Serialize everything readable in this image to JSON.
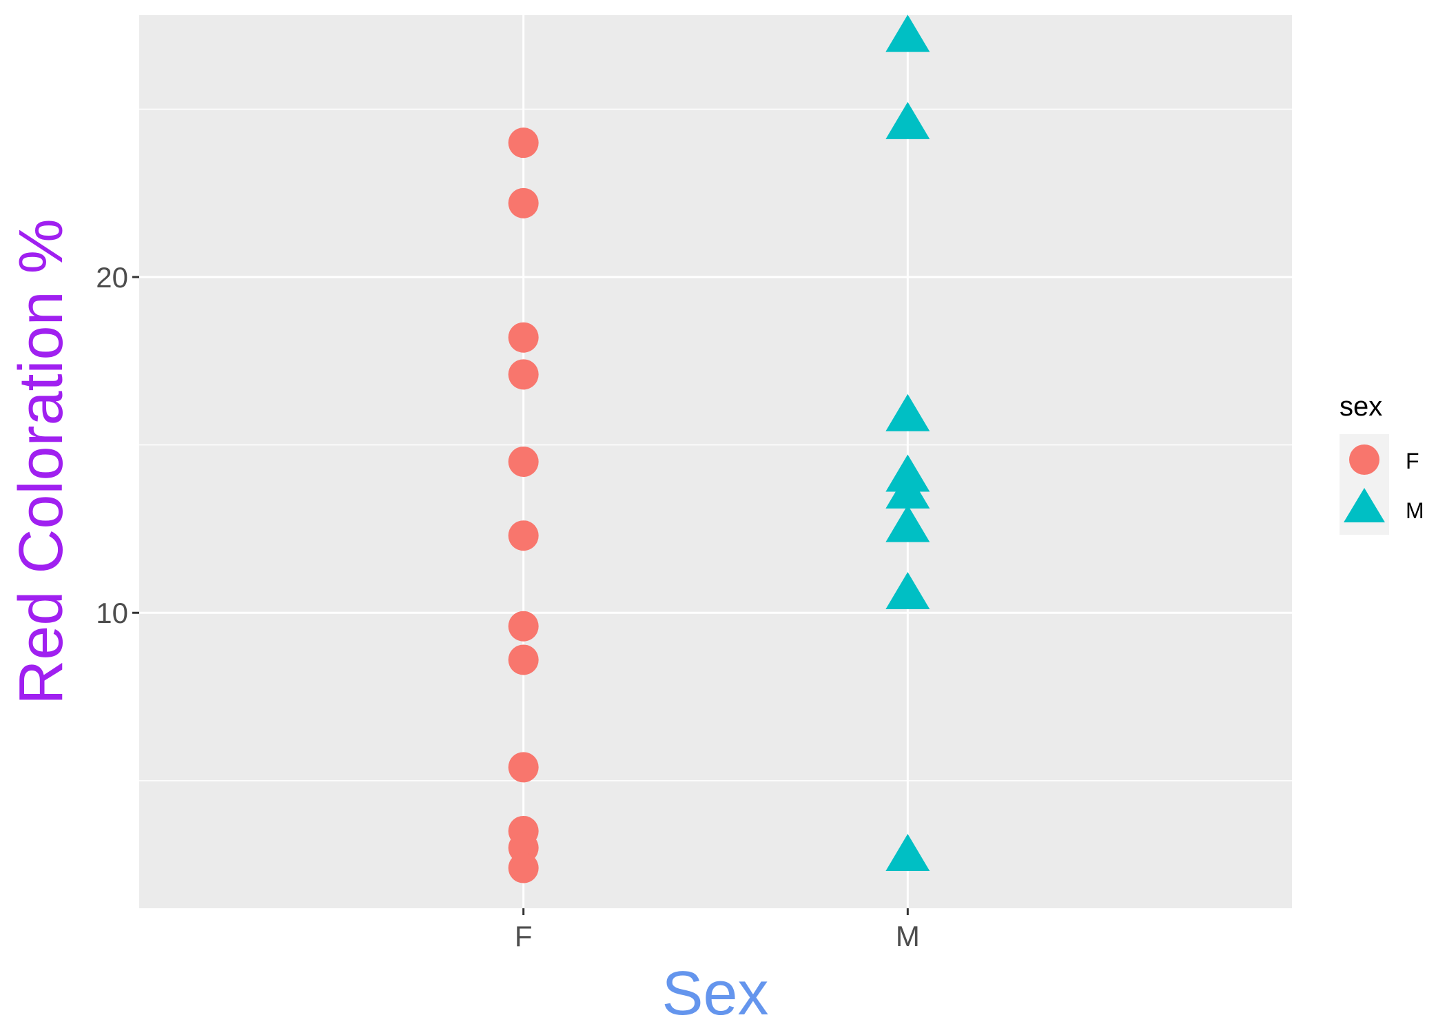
{
  "chart_data": {
    "type": "scatter",
    "xlabel": "Sex",
    "ylabel": "Red Coloration %",
    "categories": [
      "F",
      "M"
    ],
    "ylim": [
      1.2,
      27.8
    ],
    "yticks": [
      10,
      20
    ],
    "grid": true,
    "legend": {
      "title": "sex",
      "placement": "right"
    },
    "series": [
      {
        "name": "F",
        "marker": "circle",
        "color": "#F8766D",
        "points": [
          {
            "x": "F",
            "y": 24.0
          },
          {
            "x": "F",
            "y": 22.2
          },
          {
            "x": "F",
            "y": 18.2
          },
          {
            "x": "F",
            "y": 17.1
          },
          {
            "x": "F",
            "y": 14.5
          },
          {
            "x": "F",
            "y": 12.3
          },
          {
            "x": "F",
            "y": 9.6
          },
          {
            "x": "F",
            "y": 8.6
          },
          {
            "x": "F",
            "y": 5.4
          },
          {
            "x": "F",
            "y": 3.5
          },
          {
            "x": "F",
            "y": 3.0
          },
          {
            "x": "F",
            "y": 2.4
          }
        ]
      },
      {
        "name": "M",
        "marker": "triangle",
        "color": "#00BFC4",
        "points": [
          {
            "x": "M",
            "y": 27.2
          },
          {
            "x": "M",
            "y": 24.6
          },
          {
            "x": "M",
            "y": 15.9
          },
          {
            "x": "M",
            "y": 14.1
          },
          {
            "x": "M",
            "y": 13.6
          },
          {
            "x": "M",
            "y": 12.6
          },
          {
            "x": "M",
            "y": 10.6
          },
          {
            "x": "M",
            "y": 2.8
          }
        ]
      }
    ]
  },
  "colors": {
    "panel": "#EBEBEB",
    "grid": "#FFFFFF",
    "xlabel": "#6495ED",
    "ylabel": "#A020F0"
  }
}
